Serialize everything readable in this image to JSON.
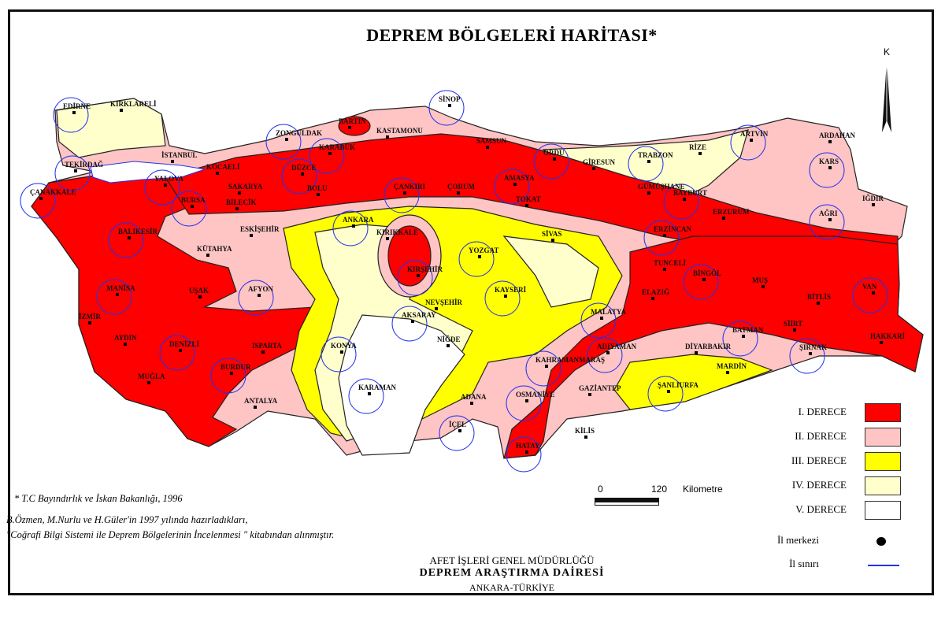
{
  "title": "DEPREM BÖLGELERİ HARİTASI*",
  "north_label": "K",
  "zone_colors": {
    "I": "#ff0000",
    "II": "#ffc4c4",
    "III": "#ffff00",
    "IV": "#ffffcc",
    "V": "#ffffff"
  },
  "boundary_color": "#2233ee",
  "cities": [
    "EDİRNE",
    "KIRKLARELİ",
    "TEKİRDAĞ",
    "İSTANBUL",
    "YALOVA",
    "KOCAELİ",
    "ÇANAKKALE",
    "SAKARYA",
    "DÜZCE",
    "BOLU",
    "BURSA",
    "BİLECİK",
    "ZONGULDAK",
    "BARTIN",
    "KARABÜK",
    "KASTAMONU",
    "SİNOP",
    "SAMSUN",
    "ÇANKIRI",
    "ÇORUM",
    "AMASYA",
    "TOKAT",
    "ORDU",
    "GİRESUN",
    "TRABZON",
    "RİZE",
    "ARTVİN",
    "ARDAHAN",
    "KARS",
    "GÜMÜŞHANE",
    "BAYBURT",
    "ERZURUM",
    "AĞRI",
    "IĞDIR",
    "BALIKESİR",
    "ESKİŞEHİR",
    "ANKARA",
    "KIRIKKALE",
    "YOZGAT",
    "SİVAS",
    "ERZİNCAN",
    "KÜTAHYA",
    "KIRŞEHİR",
    "TUNCELİ",
    "BİNGÖL",
    "MUŞ",
    "VAN",
    "BİTLİS",
    "MANİSA",
    "UŞAK",
    "AFYON",
    "NEVŞEHİR",
    "KAYSERİ",
    "ELAZIĞ",
    "MALATYA",
    "İZMİR",
    "AKSARAY",
    "AYDIN",
    "DENİZLİ",
    "ISPARTA",
    "KONYA",
    "NİĞDE",
    "ADIYAMAN",
    "DİYARBAKIR",
    "BATMAN",
    "SİİRT",
    "ŞIRNAK",
    "HAKKARİ",
    "BURDUR",
    "MUĞLA",
    "KAHRAMANMARAŞ",
    "MARDİN",
    "ŞANLIURFA",
    "GAZİANTEP",
    "KARAMAN",
    "ADANA",
    "OSMANİYE",
    "ANTALYA",
    "İÇEL",
    "KİLİS",
    "HATAY"
  ],
  "scale": {
    "start": "0",
    "end": "120",
    "unit": "Kilometre"
  },
  "legend": [
    {
      "label": "I. DERECE",
      "zone": "I"
    },
    {
      "label": "II. DERECE",
      "zone": "II"
    },
    {
      "label": "III. DERECE",
      "zone": "III"
    },
    {
      "label": "IV. DERECE",
      "zone": "IV"
    },
    {
      "label": "V. DERECE",
      "zone": "V"
    }
  ],
  "legend_symbols": {
    "center": "İl merkezi",
    "border": "İl sınırı"
  },
  "notes": {
    "source": "* T.C Bayındırlık ve İskan Bakanlığı, 1996",
    "line1": "B.Özmen, M.Nurlu ve H.Güler'in 1997 yılında hazırladıkları,",
    "line2": "\"Coğrafi Bilgi Sistemi ile Deprem Bölgelerinin İncelenmesi \" kitabından alınmıştır."
  },
  "agency": {
    "line1": "AFET İŞLERİ GENEL MÜDÜRLÜĞÜ",
    "line2": "DEPREM ARAŞTIRMA DAİRESİ",
    "line3": "ANKARA-TÜRKİYE"
  }
}
